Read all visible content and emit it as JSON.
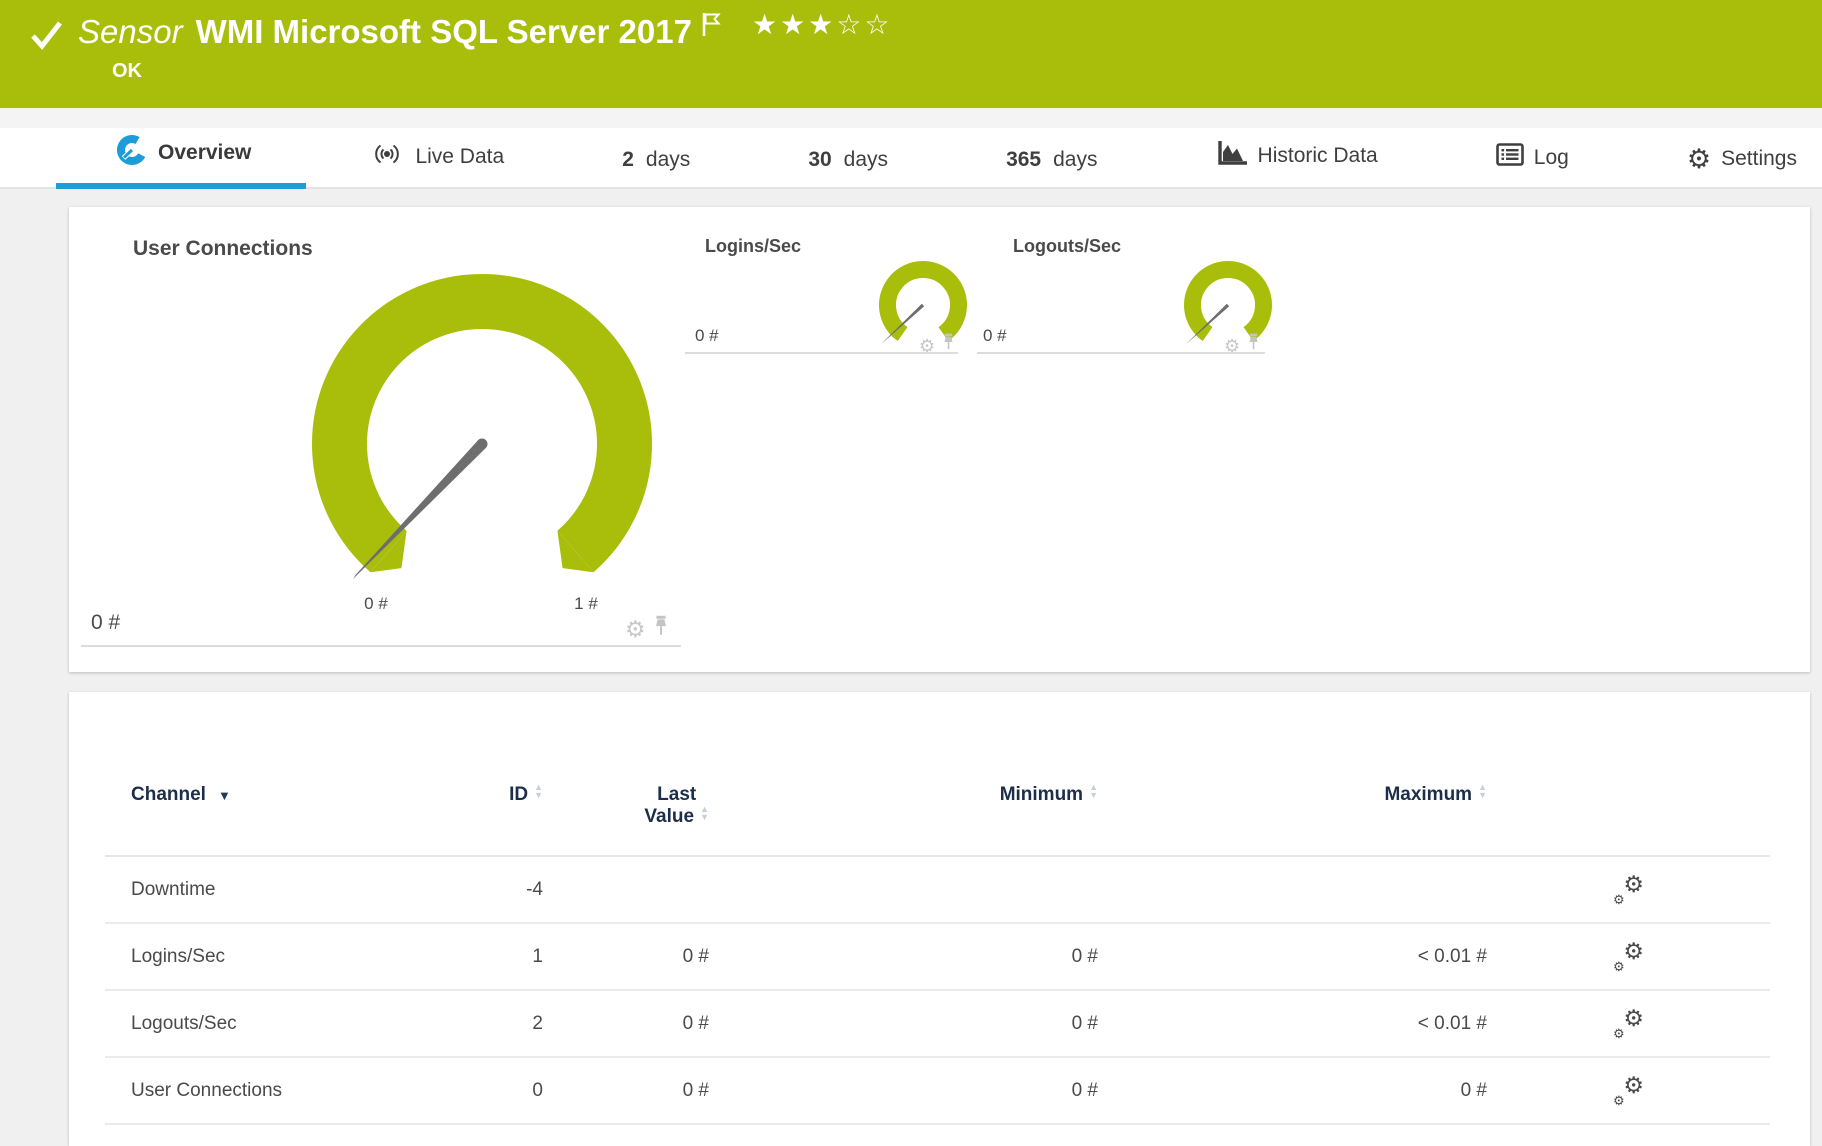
{
  "colors": {
    "brand_green": "#a9bd0b",
    "accent_blue": "#1e9cd8",
    "needle_gray": "#6e6e6e"
  },
  "header": {
    "kind": "Sensor",
    "title": "WMI Microsoft SQL Server 2017",
    "status": "OK",
    "rating_filled": 3,
    "rating_total": 5
  },
  "tabs": [
    {
      "label": "Overview",
      "icon": "gauge-icon",
      "active": true
    },
    {
      "label": "Live Data",
      "icon": "live-data-icon"
    },
    {
      "strong": "2",
      "label": "days"
    },
    {
      "strong": "30",
      "label": "days"
    },
    {
      "strong": "365",
      "label": "days"
    },
    {
      "label": "Historic Data",
      "icon": "historic-data-icon"
    },
    {
      "label": "Log",
      "icon": "log-icon"
    },
    {
      "label": "Settings",
      "icon": "gear-icon"
    }
  ],
  "gauges": {
    "panel_title": "User Connections",
    "main": {
      "channel": "User Connections",
      "value": "0 #",
      "scale_min": "0 #",
      "scale_max": "1 #"
    },
    "small": [
      {
        "title": "Logins/Sec",
        "value": "0 #"
      },
      {
        "title": "Logouts/Sec",
        "value": "0 #"
      }
    ]
  },
  "channel_table": {
    "columns": {
      "channel": "Channel",
      "id": "ID",
      "last_value_line1": "Last",
      "last_value_line2": "Value",
      "minimum": "Minimum",
      "maximum": "Maximum"
    },
    "rows": [
      {
        "channel": "Downtime",
        "id": "-4",
        "last_value": "",
        "minimum": "",
        "maximum": ""
      },
      {
        "channel": "Logins/Sec",
        "id": "1",
        "last_value": "0 #",
        "minimum": "0 #",
        "maximum": "< 0.01 #"
      },
      {
        "channel": "Logouts/Sec",
        "id": "2",
        "last_value": "0 #",
        "minimum": "0 #",
        "maximum": "< 0.01 #"
      },
      {
        "channel": "User Connections",
        "id": "0",
        "last_value": "0 #",
        "minimum": "0 #",
        "maximum": "0 #"
      }
    ]
  }
}
